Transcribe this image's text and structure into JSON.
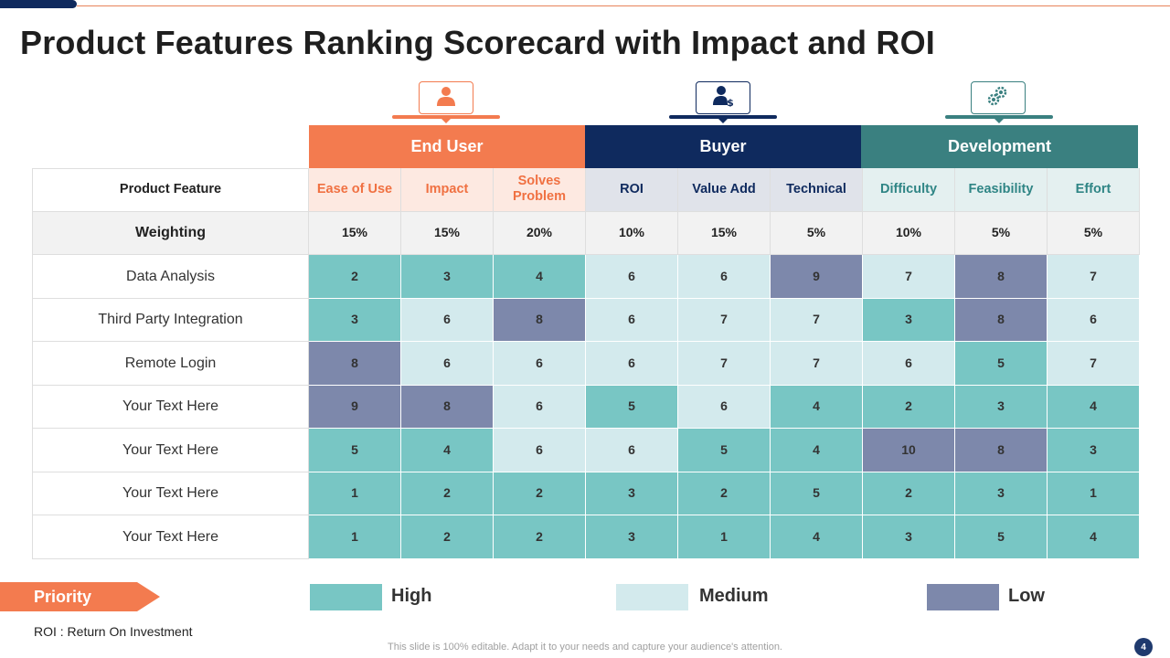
{
  "title": "Product Features Ranking Scorecard with Impact and ROI",
  "colors": {
    "end_user": "#f37b4f",
    "buyer": "#0f2a5e",
    "development": "#3a8080",
    "high": "#78c6c4",
    "medium": "#d3eaed",
    "low": "#7d88ab"
  },
  "groups": [
    {
      "name": "End User",
      "icon": "user-icon"
    },
    {
      "name": "Buyer",
      "icon": "buyer-dollar-icon"
    },
    {
      "name": "Development",
      "icon": "gears-icon"
    }
  ],
  "table": {
    "feature_header": "Product Feature",
    "weighting_label": "Weighting",
    "columns": [
      {
        "label": "Ease of Use",
        "weight": "15%",
        "group": "end"
      },
      {
        "label": "Impact",
        "weight": "15%",
        "group": "end"
      },
      {
        "label": "Solves Problem",
        "weight": "20%",
        "group": "end"
      },
      {
        "label": "ROI",
        "weight": "10%",
        "group": "buy"
      },
      {
        "label": "Value Add",
        "weight": "15%",
        "group": "buy"
      },
      {
        "label": "Technical",
        "weight": "5%",
        "group": "buy"
      },
      {
        "label": "Difficulty",
        "weight": "10%",
        "group": "dev"
      },
      {
        "label": "Feasibility",
        "weight": "5%",
        "group": "dev"
      },
      {
        "label": "Effort",
        "weight": "5%",
        "group": "dev"
      }
    ],
    "rows": [
      {
        "feature": "Data Analysis",
        "values": [
          "2",
          "3",
          "4",
          "6",
          "6",
          "9",
          "7",
          "8",
          "7"
        ],
        "levels": [
          "high",
          "high",
          "high",
          "medium",
          "medium",
          "low",
          "medium",
          "low",
          "medium"
        ]
      },
      {
        "feature": "Third Party Integration",
        "values": [
          "3",
          "6",
          "8",
          "6",
          "7",
          "7",
          "3",
          "8",
          "6"
        ],
        "levels": [
          "high",
          "medium",
          "low",
          "medium",
          "medium",
          "medium",
          "high",
          "low",
          "medium"
        ]
      },
      {
        "feature": "Remote Login",
        "values": [
          "8",
          "6",
          "6",
          "6",
          "7",
          "7",
          "6",
          "5",
          "7"
        ],
        "levels": [
          "low",
          "medium",
          "medium",
          "medium",
          "medium",
          "medium",
          "medium",
          "high",
          "medium"
        ]
      },
      {
        "feature": "Your Text Here",
        "values": [
          "9",
          "8",
          "6",
          "5",
          "6",
          "4",
          "2",
          "3",
          "4"
        ],
        "levels": [
          "low",
          "low",
          "medium",
          "high",
          "medium",
          "high",
          "high",
          "high",
          "high"
        ]
      },
      {
        "feature": "Your Text Here",
        "values": [
          "5",
          "4",
          "6",
          "6",
          "5",
          "4",
          "10",
          "8",
          "3"
        ],
        "levels": [
          "high",
          "high",
          "medium",
          "medium",
          "high",
          "high",
          "low",
          "low",
          "high"
        ]
      },
      {
        "feature": "Your Text Here",
        "values": [
          "1",
          "2",
          "2",
          "3",
          "2",
          "5",
          "2",
          "3",
          "1"
        ],
        "levels": [
          "high",
          "high",
          "high",
          "high",
          "high",
          "high",
          "high",
          "high",
          "high"
        ]
      },
      {
        "feature": "Your Text Here",
        "values": [
          "1",
          "2",
          "2",
          "3",
          "1",
          "4",
          "3",
          "5",
          "4"
        ],
        "levels": [
          "high",
          "high",
          "high",
          "high",
          "high",
          "high",
          "high",
          "high",
          "high"
        ]
      }
    ]
  },
  "legend": {
    "priority_label": "Priority",
    "high_label": "High",
    "medium_label": "Medium",
    "low_label": "Low"
  },
  "roi_note": "ROI : Return On Investment",
  "footer_note": "This slide is 100% editable. Adapt it to your needs and capture your audience's attention.",
  "page_number": "4"
}
